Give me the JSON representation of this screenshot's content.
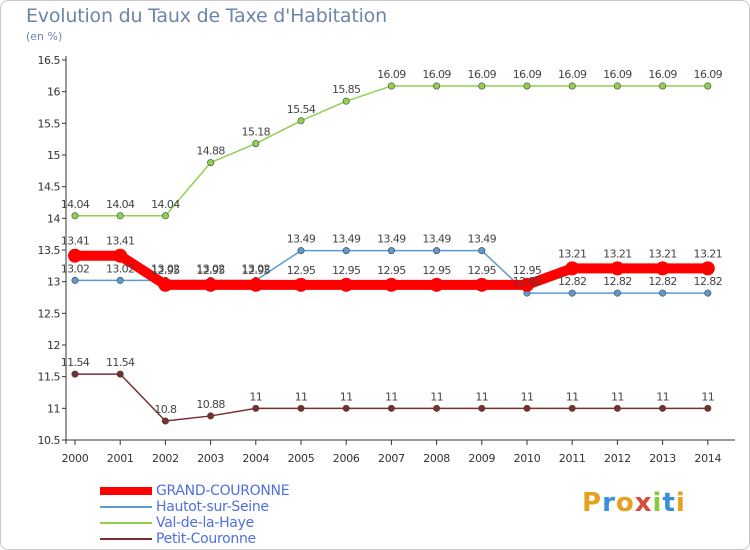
{
  "title": "Evolution du Taux de Taxe d'Habitation",
  "unit_label": "(en %)",
  "logo_text": "Proxiti",
  "chart_data": {
    "type": "line",
    "x": [
      "2000",
      "2001",
      "2002",
      "2003",
      "2004",
      "2005",
      "2006",
      "2007",
      "2008",
      "2009",
      "2010",
      "2011",
      "2012",
      "2013",
      "2014"
    ],
    "ylim": [
      10.5,
      16.5
    ],
    "yticks": [
      "10.5",
      "11",
      "11.5",
      "12",
      "12.5",
      "13",
      "13.5",
      "14",
      "14.5",
      "15",
      "15.5",
      "16",
      "16.5"
    ],
    "grid": false,
    "legend_position": "bottom-left",
    "series": [
      {
        "name": "GRAND-COURONNE",
        "color": "#ff0000",
        "values": [
          13.41,
          13.41,
          12.95,
          12.95,
          12.95,
          12.95,
          12.95,
          12.95,
          12.95,
          12.95,
          12.95,
          13.21,
          13.21,
          13.21,
          13.21
        ],
        "labels": [
          "13.41",
          "13.41",
          "12.95",
          "12.95",
          "12.95",
          "12.95",
          "12.95",
          "12.95",
          "12.95",
          "12.95",
          "12.95",
          "13.21",
          "13.21",
          "13.21",
          "13.21"
        ]
      },
      {
        "name": "Hautot-sur-Seine",
        "color": "#5b9bd5",
        "values": [
          13.02,
          13.02,
          13.02,
          13.02,
          13.02,
          13.49,
          13.49,
          13.49,
          13.49,
          13.49,
          12.82,
          12.82,
          12.82,
          12.82,
          12.82
        ],
        "labels": [
          "13.02",
          "13.02",
          "13.02",
          "13.02",
          "13.02",
          "13.49",
          "13.49",
          "13.49",
          "13.49",
          "13.49",
          "12.82",
          "12.82",
          "12.82",
          "12.82",
          "12.82"
        ]
      },
      {
        "name": "Val-de-la-Haye",
        "color": "#8fd14f",
        "values": [
          14.04,
          14.04,
          14.04,
          14.88,
          15.18,
          15.54,
          15.85,
          16.09,
          16.09,
          16.09,
          16.09,
          16.09,
          16.09,
          16.09,
          16.09
        ],
        "labels": [
          "14.04",
          "14.04",
          "14.04",
          "14.88",
          "15.18",
          "15.54",
          "15.85",
          "16.09",
          "16.09",
          "16.09",
          "16.09",
          "16.09",
          "16.09",
          "16.09",
          "16.09"
        ]
      },
      {
        "name": "Petit-Couronne",
        "color": "#7a2e2e",
        "values": [
          11.54,
          11.54,
          10.8,
          10.88,
          11,
          11,
          11,
          11,
          11,
          11,
          11,
          11,
          11,
          11,
          11
        ],
        "labels": [
          "11.54",
          "11.54",
          "10.8",
          "10.88",
          "11",
          "11",
          "11",
          "11",
          "11",
          "11",
          "11",
          "11",
          "11",
          "11",
          "11"
        ]
      }
    ]
  }
}
